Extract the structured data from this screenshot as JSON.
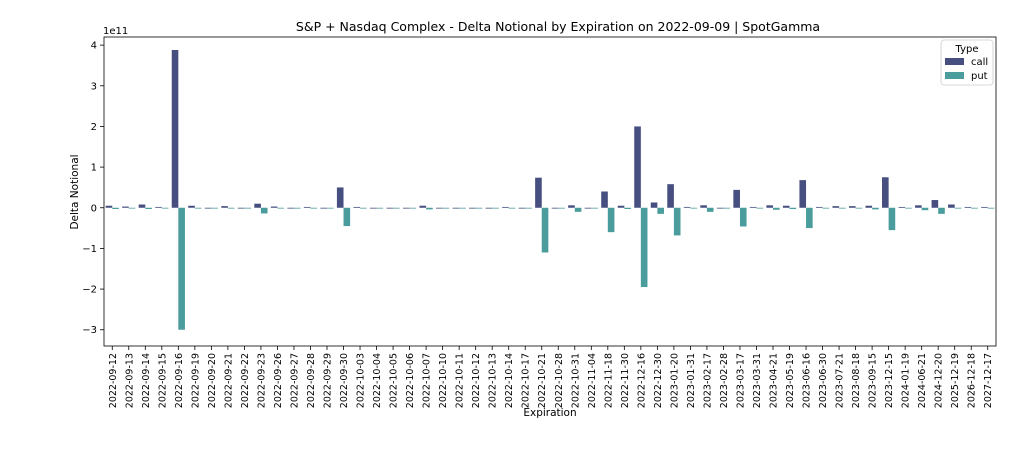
{
  "chart_data": {
    "type": "bar",
    "title": "S&P + Nasdaq Complex - Delta Notional by Expiration on 2022-09-09 | SpotGamma",
    "xlabel": "Expiration",
    "ylabel": "Delta Notional",
    "offset_text": "1e11",
    "ylim": [
      -3.4,
      4.2
    ],
    "yticks": [
      -3,
      -2,
      -1,
      0,
      1,
      2,
      3,
      4
    ],
    "ytick_labels": [
      "−3",
      "−2",
      "−1",
      "0",
      "1",
      "2",
      "3",
      "4"
    ],
    "grid": false,
    "legend": {
      "title": "Type",
      "placement": "top-right"
    },
    "categories": [
      "2022-09-12",
      "2022-09-13",
      "2022-09-14",
      "2022-09-15",
      "2022-09-16",
      "2022-09-19",
      "2022-09-20",
      "2022-09-21",
      "2022-09-22",
      "2022-09-23",
      "2022-09-26",
      "2022-09-27",
      "2022-09-28",
      "2022-09-29",
      "2022-09-30",
      "2022-10-03",
      "2022-10-04",
      "2022-10-05",
      "2022-10-06",
      "2022-10-07",
      "2022-10-10",
      "2022-10-11",
      "2022-10-12",
      "2022-10-13",
      "2022-10-14",
      "2022-10-17",
      "2022-10-21",
      "2022-10-28",
      "2022-10-31",
      "2022-11-04",
      "2022-11-18",
      "2022-11-30",
      "2022-12-16",
      "2022-12-30",
      "2023-01-20",
      "2023-01-31",
      "2023-02-17",
      "2023-02-28",
      "2023-03-17",
      "2023-03-31",
      "2023-04-21",
      "2023-05-19",
      "2023-06-16",
      "2023-06-30",
      "2023-07-21",
      "2023-08-18",
      "2023-09-15",
      "2023-12-15",
      "2024-01-19",
      "2024-06-21",
      "2024-12-20",
      "2025-12-19",
      "2026-12-18",
      "2027-12-17"
    ],
    "series": [
      {
        "name": "call",
        "color": "#464f7f",
        "values": [
          0.05,
          0.03,
          0.08,
          0.02,
          3.88,
          0.05,
          0.0,
          0.04,
          0.0,
          0.1,
          0.03,
          0.0,
          0.02,
          0.0,
          0.5,
          0.02,
          0.0,
          0.0,
          0.0,
          0.05,
          0.0,
          0.0,
          0.0,
          0.0,
          0.02,
          0.0,
          0.74,
          0.0,
          0.06,
          0.0,
          0.4,
          0.05,
          2.0,
          0.13,
          0.58,
          0.02,
          0.06,
          0.0,
          0.44,
          0.02,
          0.06,
          0.05,
          0.68,
          0.02,
          0.04,
          0.04,
          0.05,
          0.75,
          0.02,
          0.06,
          0.19,
          0.08,
          0.02,
          0.02
        ]
      },
      {
        "name": "put",
        "color": "#4a9d9c",
        "values": [
          -0.03,
          0.0,
          -0.03,
          0.0,
          -3.0,
          -0.02,
          0.0,
          -0.02,
          0.0,
          -0.14,
          -0.02,
          0.0,
          -0.02,
          0.0,
          -0.45,
          0.0,
          0.0,
          0.0,
          0.0,
          -0.04,
          0.0,
          0.0,
          0.0,
          0.0,
          -0.01,
          0.0,
          -1.1,
          0.0,
          -0.1,
          0.0,
          -0.6,
          -0.03,
          -1.95,
          -0.15,
          -0.68,
          0.0,
          -0.1,
          0.0,
          -0.46,
          0.0,
          -0.05,
          -0.03,
          -0.5,
          0.0,
          0.0,
          0.0,
          -0.04,
          -0.55,
          0.0,
          -0.06,
          -0.15,
          -0.02,
          0.0,
          0.0
        ]
      }
    ]
  }
}
